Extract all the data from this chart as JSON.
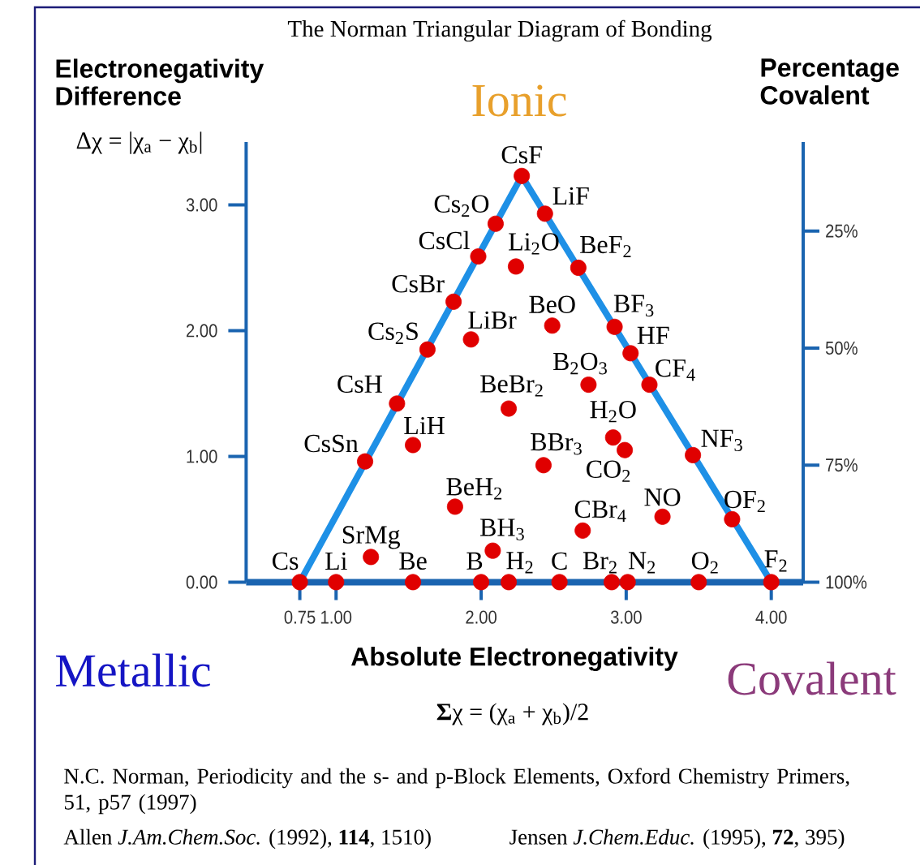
{
  "chart_data": {
    "type": "scatter",
    "title": "The Norman Triangular Diagram of Bonding",
    "xlabel": "Absolute Electronegativity",
    "ylabel": "Electronegativity Difference",
    "y2label": "Percentage Covalent",
    "xlim": [
      0.38,
      4.22
    ],
    "ylim": [
      0,
      3.5
    ],
    "y2lim": [
      100,
      6
    ],
    "xticks": [
      {
        "value": 0.75,
        "label": "0.75"
      },
      {
        "value": 1,
        "label": "1.00"
      },
      {
        "value": 2,
        "label": "2.00"
      },
      {
        "value": 3,
        "label": "3.00"
      },
      {
        "value": 4,
        "label": "4.00"
      }
    ],
    "yticks": [
      {
        "value": 0,
        "label": "0.00"
      },
      {
        "value": 1,
        "label": "1.00"
      },
      {
        "value": 2,
        "label": "2.00"
      },
      {
        "value": 3,
        "label": "3.00"
      }
    ],
    "y2ticks": [
      {
        "value": 25,
        "label": "25%"
      },
      {
        "value": 50,
        "label": "50%"
      },
      {
        "value": 75,
        "label": "75%"
      },
      {
        "value": 100,
        "label": "100%"
      }
    ],
    "series": [
      {
        "type": "line",
        "color": "#1e90e6",
        "x": [
          0.75,
          2.28,
          4.0
        ],
        "values": [
          0,
          3.23,
          0
        ]
      },
      {
        "color": "#e00000",
        "marker": "circle",
        "x": [
          2.28,
          2.1,
          1.98,
          1.81,
          1.63,
          1.42,
          1.2,
          2.44,
          2.67,
          2.92,
          3.03,
          3.16,
          3.46,
          3.73,
          2.24,
          2.49,
          1.93,
          2.74,
          2.19,
          1.53,
          2.91,
          2.99,
          2.43,
          1.82,
          3.25,
          2.7,
          2.08,
          1.24,
          0.75,
          1.0,
          1.53,
          2.0,
          2.19,
          2.54,
          2.9,
          3.01,
          3.5,
          4.0
        ],
        "values": [
          3.23,
          2.85,
          2.59,
          2.23,
          1.85,
          1.42,
          0.96,
          2.93,
          2.5,
          2.03,
          1.82,
          1.57,
          1.01,
          0.5,
          2.51,
          2.04,
          1.93,
          1.57,
          1.38,
          1.09,
          1.15,
          1.05,
          0.93,
          0.6,
          0.52,
          0.41,
          0.25,
          0.2,
          0,
          0,
          0,
          0,
          0,
          0,
          0,
          0,
          0,
          0
        ]
      }
    ],
    "annotations": [
      "Ionic",
      "Metallic",
      "Covalent",
      "Δχ = |χ$_{a}$ − χ$_{b}$|",
      "**Σ**χ = (χ$_{a}$ + χ$_{b}$)/2",
      "N.C. Norman, Periodicity and the s- and p-Block Elements, Oxford Chemistry Primers, 51, p57 (1997)",
      "Allen *J.Am.Chem.Soc.* (1992), **114**, 1510)",
      "Jensen *J.Chem.Educ.* (1995), **72**, 395)",
      {
        "text": "CsF",
        "x": 2.28,
        "y": 3.23
      },
      {
        "text": "Cs$_{2}$O",
        "x": 2.1,
        "y": 2.85
      },
      {
        "text": "CsCl",
        "x": 1.98,
        "y": 2.59
      },
      {
        "text": "CsBr",
        "x": 1.81,
        "y": 2.23
      },
      {
        "text": "Cs$_{2}$S",
        "x": 1.63,
        "y": 1.85
      },
      {
        "text": "CsH",
        "x": 1.42,
        "y": 1.42
      },
      {
        "text": "CsSn",
        "x": 1.2,
        "y": 0.96
      },
      {
        "text": "LiF",
        "x": 2.44,
        "y": 2.93
      },
      {
        "text": "BeF$_{2}$",
        "x": 2.67,
        "y": 2.5
      },
      {
        "text": "BF$_{3}$",
        "x": 2.92,
        "y": 2.03
      },
      {
        "text": "HF",
        "x": 3.03,
        "y": 1.82
      },
      {
        "text": "CF$_{4}$",
        "x": 3.16,
        "y": 1.57
      },
      {
        "text": "NF$_{3}$",
        "x": 3.46,
        "y": 1.01
      },
      {
        "text": "OF$_{2}$",
        "x": 3.73,
        "y": 0.5
      },
      {
        "text": "Li$_{2}$O",
        "x": 2.24,
        "y": 2.51
      },
      {
        "text": "BeO",
        "x": 2.49,
        "y": 2.04
      },
      {
        "text": "LiBr",
        "x": 1.93,
        "y": 1.93
      },
      {
        "text": "B$_{2}$O$_{3}$",
        "x": 2.74,
        "y": 1.57
      },
      {
        "text": "BeBr$_{2}$",
        "x": 2.19,
        "y": 1.38
      },
      {
        "text": "LiH",
        "x": 1.53,
        "y": 1.09
      },
      {
        "text": "H$_{2}$O",
        "x": 2.91,
        "y": 1.15
      },
      {
        "text": "CO$_{2}$",
        "x": 2.99,
        "y": 1.05
      },
      {
        "text": "BBr$_{3}$",
        "x": 2.43,
        "y": 0.93
      },
      {
        "text": "BeH$_{2}$",
        "x": 1.82,
        "y": 0.6
      },
      {
        "text": "NO",
        "x": 3.25,
        "y": 0.52
      },
      {
        "text": "CBr$_{4}$",
        "x": 2.7,
        "y": 0.41
      },
      {
        "text": "BH$_{3}$",
        "x": 2.08,
        "y": 0.25
      },
      {
        "text": "SrMg",
        "x": 1.24,
        "y": 0.2
      },
      {
        "text": "Cs",
        "x": 0.75,
        "y": 0
      },
      {
        "text": "Li",
        "x": 1.0,
        "y": 0
      },
      {
        "text": "Be",
        "x": 1.53,
        "y": 0
      },
      {
        "text": "B",
        "x": 2.0,
        "y": 0
      },
      {
        "text": "H$_{2}$",
        "x": 2.19,
        "y": 0
      },
      {
        "text": "C",
        "x": 2.54,
        "y": 0
      },
      {
        "text": "Br$_{2}$",
        "x": 2.9,
        "y": 0
      },
      {
        "text": "N$_{2}$",
        "x": 3.01,
        "y": 0
      },
      {
        "text": "O$_{2}$",
        "x": 3.5,
        "y": 0
      },
      {
        "text": "F$_{2}$",
        "x": 4.0,
        "y": 0
      }
    ]
  }
}
